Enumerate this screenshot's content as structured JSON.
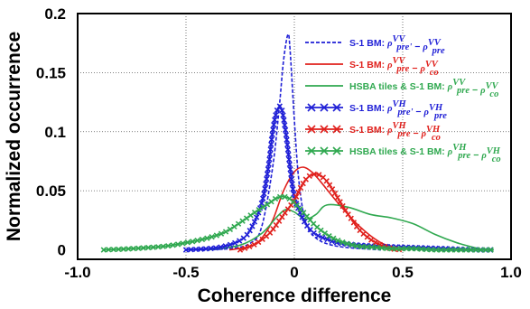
{
  "chart_data": {
    "type": "line",
    "title": "",
    "xlabel": "Coherence difference",
    "ylabel": "Normalized occurrence",
    "xlim": [
      -1.0,
      1.0
    ],
    "ylim": [
      -0.008,
      0.2
    ],
    "xticks": [
      -1.0,
      -0.5,
      0,
      0.5,
      1.0
    ],
    "xtick_labels": [
      "-1.0",
      "-0.5",
      "0",
      "0.5",
      "1.0"
    ],
    "yticks": [
      0,
      0.05,
      0.1,
      0.15,
      0.2
    ],
    "ytick_labels": [
      "0",
      "0.05",
      "0.1",
      "0.15",
      "0.2"
    ],
    "grid": true,
    "legend_position": "top-right",
    "series": [
      {
        "name": "S-1 BM: ρ^VV_pre' − ρ^VV_pre",
        "legend_prefix": "S-1 BM:",
        "legend_formula": [
          [
            "ρ",
            "VV",
            "pre'"
          ],
          [
            "ρ",
            "VV",
            "pre"
          ]
        ],
        "color": "#1f1fd6",
        "dash": "dashed",
        "marker": "none",
        "x": [
          -0.5,
          -0.3,
          -0.2,
          -0.15,
          -0.1,
          -0.07,
          -0.05,
          -0.03,
          -0.02,
          0.0,
          0.02,
          0.05,
          0.1,
          0.2,
          0.4
        ],
        "y": [
          0.0,
          0.001,
          0.006,
          0.02,
          0.07,
          0.12,
          0.16,
          0.182,
          0.17,
          0.11,
          0.06,
          0.025,
          0.01,
          0.003,
          0.0
        ]
      },
      {
        "name": "S-1 BM: ρ^VV_pre − ρ^VV_co",
        "legend_prefix": "S-1 BM:",
        "legend_formula": [
          [
            "ρ",
            "VV",
            "pre"
          ],
          [
            "ρ",
            "VV",
            "co"
          ]
        ],
        "color": "#e0201c",
        "dash": "solid",
        "marker": "none",
        "x": [
          -0.3,
          -0.2,
          -0.15,
          -0.1,
          -0.05,
          0.0,
          0.04,
          0.08,
          0.12,
          0.2,
          0.3,
          0.4,
          0.5
        ],
        "y": [
          0.0,
          0.003,
          0.01,
          0.025,
          0.05,
          0.066,
          0.07,
          0.066,
          0.058,
          0.04,
          0.02,
          0.006,
          0.0
        ]
      },
      {
        "name": "HSBA tiles & S-1 BM: ρ^VV_pre − ρ^VV_co",
        "legend_prefix": "HSBA tiles & S-1 BM:",
        "legend_formula": [
          [
            "ρ",
            "VV",
            "pre"
          ],
          [
            "ρ",
            "VV",
            "co"
          ]
        ],
        "color": "#2fa84f",
        "dash": "solid",
        "marker": "none",
        "x": [
          -0.4,
          -0.25,
          -0.15,
          -0.08,
          -0.04,
          0.0,
          0.05,
          0.1,
          0.15,
          0.25,
          0.35,
          0.45,
          0.55,
          0.65,
          0.75,
          0.85
        ],
        "y": [
          0.0,
          0.004,
          0.014,
          0.028,
          0.034,
          0.032,
          0.026,
          0.03,
          0.038,
          0.036,
          0.03,
          0.027,
          0.022,
          0.013,
          0.006,
          0.001
        ]
      },
      {
        "name": "S-1 BM: ρ^VH_pre' − ρ^VH_pre",
        "legend_prefix": "S-1 BM:",
        "legend_formula": [
          [
            "ρ",
            "VH",
            "pre'"
          ],
          [
            "ρ",
            "VH",
            "pre"
          ]
        ],
        "color": "#1f1fd6",
        "dash": "solid",
        "marker": "x",
        "x": [
          -0.5,
          -0.35,
          -0.25,
          -0.2,
          -0.15,
          -0.12,
          -0.1,
          -0.08,
          -0.06,
          -0.04,
          -0.02,
          0.0,
          0.03,
          0.06,
          0.1,
          0.15,
          0.2,
          0.3,
          0.4,
          0.55,
          0.7,
          0.85,
          0.92
        ],
        "y": [
          0.0,
          0.002,
          0.008,
          0.018,
          0.04,
          0.07,
          0.1,
          0.118,
          0.12,
          0.1,
          0.07,
          0.045,
          0.03,
          0.02,
          0.013,
          0.009,
          0.006,
          0.004,
          0.003,
          0.002,
          0.001,
          0.0,
          0.0
        ]
      },
      {
        "name": "S-1 BM: ρ^VH_pre − ρ^VH_co",
        "legend_prefix": "S-1 BM:",
        "legend_formula": [
          [
            "ρ",
            "VH",
            "pre"
          ],
          [
            "ρ",
            "VH",
            "co"
          ]
        ],
        "color": "#e0201c",
        "dash": "solid",
        "marker": "x",
        "x": [
          -0.25,
          -0.18,
          -0.12,
          -0.08,
          -0.04,
          0.0,
          0.03,
          0.06,
          0.09,
          0.12,
          0.15,
          0.18,
          0.22,
          0.26,
          0.3,
          0.35,
          0.4,
          0.45,
          0.5
        ],
        "y": [
          0.0,
          0.005,
          0.013,
          0.022,
          0.032,
          0.042,
          0.053,
          0.061,
          0.064,
          0.063,
          0.058,
          0.05,
          0.038,
          0.027,
          0.017,
          0.009,
          0.004,
          0.001,
          0.0
        ]
      },
      {
        "name": "HSBA tiles & S-1 BM: ρ^VH_pre − ρ^VH_co",
        "legend_prefix": "HSBA tiles & S-1 BM:",
        "legend_formula": [
          [
            "ρ",
            "VH",
            "pre"
          ],
          [
            "ρ",
            "VH",
            "co"
          ]
        ],
        "color": "#2fa84f",
        "dash": "solid",
        "marker": "x",
        "x": [
          -0.88,
          -0.75,
          -0.6,
          -0.5,
          -0.4,
          -0.32,
          -0.25,
          -0.18,
          -0.12,
          -0.08,
          -0.05,
          -0.02,
          0.02,
          0.06,
          0.1,
          0.15,
          0.2,
          0.25,
          0.3,
          0.38,
          0.45,
          0.55,
          0.65,
          0.75,
          0.85,
          0.92
        ],
        "y": [
          0.0,
          0.001,
          0.003,
          0.006,
          0.01,
          0.015,
          0.023,
          0.032,
          0.039,
          0.044,
          0.045,
          0.043,
          0.036,
          0.028,
          0.02,
          0.013,
          0.008,
          0.005,
          0.003,
          0.002,
          0.001,
          0.001,
          0.0,
          0.0,
          0.0,
          0.0
        ]
      }
    ]
  }
}
